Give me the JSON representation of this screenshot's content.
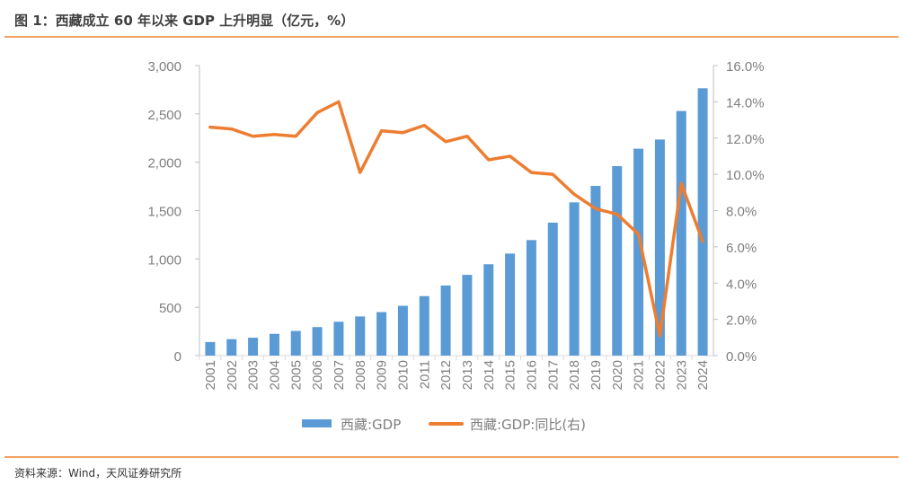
{
  "title": "图 1：西藏成立 60 年以来 GDP 上升明显（亿元，%）",
  "source": "资料来源：Wind，天风证券研究所",
  "colors": {
    "bar": "#5b9bd5",
    "line": "#ed7d31",
    "rule": "#f0a060"
  },
  "chart_data": {
    "type": "bar+line",
    "categories": [
      "2001",
      "2002",
      "2003",
      "2004",
      "2005",
      "2006",
      "2007",
      "2008",
      "2009",
      "2010",
      "2011",
      "2012",
      "2013",
      "2014",
      "2015",
      "2016",
      "2017",
      "2018",
      "2019",
      "2020",
      "2021",
      "2022",
      "2023",
      "2024"
    ],
    "series": [
      {
        "name": "西藏:GDP",
        "type": "bar",
        "axis": "left",
        "values": [
          140,
          170,
          185,
          225,
          255,
          295,
          350,
          405,
          450,
          515,
          615,
          725,
          835,
          945,
          1055,
          1195,
          1375,
          1585,
          1755,
          1960,
          2140,
          2235,
          2530,
          2765
        ]
      },
      {
        "name": "西藏:GDP:同比(右)",
        "type": "line",
        "axis": "right",
        "values": [
          12.6,
          12.5,
          12.1,
          12.2,
          12.1,
          13.4,
          14.0,
          10.1,
          12.4,
          12.3,
          12.7,
          11.8,
          12.1,
          10.8,
          11.0,
          10.1,
          10.0,
          8.9,
          8.1,
          7.8,
          6.7,
          1.1,
          9.5,
          6.3
        ]
      }
    ],
    "y_left": {
      "range": [
        0,
        3000
      ],
      "ticks": [
        "0",
        "500",
        "1,000",
        "1,500",
        "2,000",
        "2,500",
        "3,000"
      ]
    },
    "y_right": {
      "range": [
        0,
        16
      ],
      "ticks": [
        "0.0%",
        "2.0%",
        "4.0%",
        "6.0%",
        "8.0%",
        "10.0%",
        "12.0%",
        "14.0%",
        "16.0%"
      ]
    },
    "grid": false,
    "legend": "bottom"
  }
}
